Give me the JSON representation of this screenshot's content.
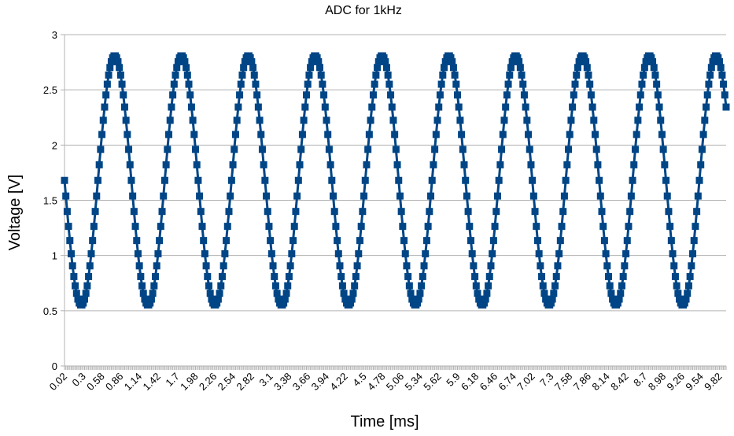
{
  "chart_data": {
    "type": "line",
    "title": "ADC for 1kHz",
    "xlabel": "Time [ms]",
    "ylabel": "Voltage [V]",
    "ylim": [
      0,
      3
    ],
    "yticks": [
      "0",
      "0.5",
      "1",
      "1.5",
      "2",
      "2.5",
      "3"
    ],
    "x_start": 0.02,
    "x_step": 0.02,
    "n_points": 496,
    "xtick_labels": [
      "0.02",
      "0.3",
      "0.58",
      "0.86",
      "1.14",
      "1.42",
      "1.7",
      "1.98",
      "2.26",
      "2.54",
      "2.82",
      "3.1",
      "3.38",
      "3.66",
      "3.94",
      "4.22",
      "4.5",
      "4.78",
      "5.06",
      "5.34",
      "5.62",
      "5.9",
      "6.18",
      "6.46",
      "6.74",
      "7.02",
      "7.3",
      "7.58",
      "7.86",
      "8.14",
      "8.42",
      "8.7",
      "8.98",
      "9.26",
      "9.54",
      "9.82"
    ],
    "grid": true,
    "legend": "none",
    "series": [
      {
        "color": "#004586",
        "marker": "square",
        "waveform": "sine",
        "frequency_khz": 1.0,
        "offset_v": 1.68,
        "amplitude_v": 1.13,
        "phase_deg": 180
      }
    ]
  }
}
